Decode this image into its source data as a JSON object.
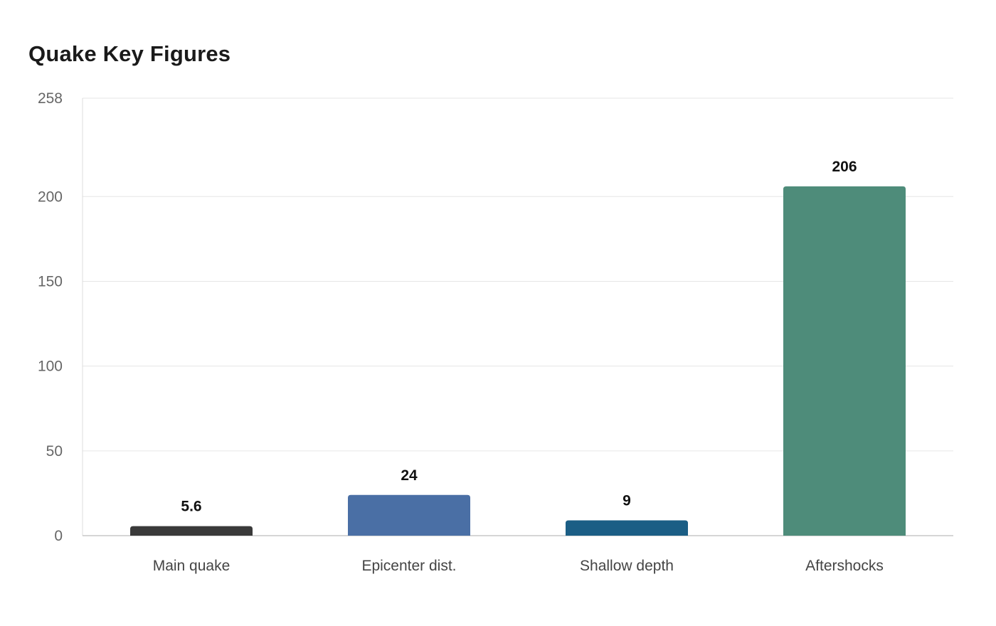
{
  "chart_data": {
    "type": "bar",
    "title": "Quake Key Figures",
    "xlabel": "",
    "ylabel": "",
    "categories": [
      "Main quake",
      "Epicenter dist.",
      "Shallow depth",
      "Aftershocks"
    ],
    "values": [
      5.6,
      24,
      9,
      206
    ],
    "value_labels": [
      "5.6",
      "24",
      "9",
      "206"
    ],
    "bar_colors": [
      "#3a3a3a",
      "#4a6fa5",
      "#1b5e85",
      "#4e8c7a"
    ],
    "ylim": [
      0,
      258
    ],
    "yticks": [
      0,
      50,
      100,
      150,
      200,
      258
    ],
    "grid": true,
    "legend": "none"
  }
}
